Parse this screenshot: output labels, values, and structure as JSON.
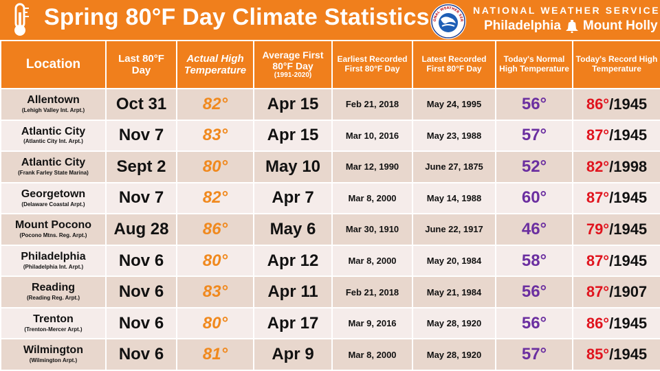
{
  "header": {
    "title": "Spring 80°F Day Climate Statistics",
    "agency": "NATIONAL WEATHER SERVICE",
    "office_left": "Philadelphia",
    "office_right": "Mount Holly",
    "logo_text": "NATIONAL WEATHER SERVICE",
    "colors": {
      "banner": "#f07f1c",
      "actual_temp": "#f0891e",
      "normal_temp": "#6b2fa0",
      "record_temp": "#e0141e"
    }
  },
  "columns": {
    "location": "Location",
    "last_80": "Last 80°F Day",
    "actual_high": "Actual High Temperature",
    "avg_first": "Average First 80°F Day",
    "avg_first_period": "(1991-2020)",
    "earliest": "Earliest Recorded First 80°F Day",
    "latest": "Latest Recorded First 80°F Day",
    "normal_high": "Today's Normal High Temperature",
    "record_high": "Today's Record High Temperature"
  },
  "rows": [
    {
      "name": "Allentown",
      "site": "(Lehigh Valley Int. Arpt.)",
      "last": "Oct 31",
      "actual": "82°",
      "avg": "Apr 15",
      "earliest": "Feb 21, 2018",
      "latest": "May 24, 1995",
      "normal": "56°",
      "record_temp": "86°",
      "record_year": "/1945"
    },
    {
      "name": "Atlantic City",
      "site": "(Atlantic City Int. Arpt.)",
      "last": "Nov 7",
      "actual": "83°",
      "avg": "Apr 15",
      "earliest": "Mar 10, 2016",
      "latest": "May 23, 1988",
      "normal": "57°",
      "record_temp": "87°",
      "record_year": "/1945"
    },
    {
      "name": "Atlantic City",
      "site": "(Frank Farley State Marina)",
      "last": "Sept 2",
      "actual": "80°",
      "avg": "May 10",
      "earliest": "Mar 12, 1990",
      "latest": "June 27, 1875",
      "normal": "52°",
      "record_temp": "82°",
      "record_year": "/1998"
    },
    {
      "name": "Georgetown",
      "site": "(Delaware Coastal Arpt.)",
      "last": "Nov 7",
      "actual": "82°",
      "avg": "Apr 7",
      "earliest": "Mar 8, 2000",
      "latest": "May 14, 1988",
      "normal": "60°",
      "record_temp": "87°",
      "record_year": "/1945"
    },
    {
      "name": "Mount Pocono",
      "site": "(Pocono Mtns. Reg. Arpt.)",
      "last": "Aug 28",
      "actual": "86°",
      "avg": "May 6",
      "earliest": "Mar 30, 1910",
      "latest": "June 22, 1917",
      "normal": "46°",
      "record_temp": "79°",
      "record_year": "/1945"
    },
    {
      "name": "Philadelphia",
      "site": "(Philadelphia Int. Arpt.)",
      "last": "Nov 6",
      "actual": "80°",
      "avg": "Apr 12",
      "earliest": "Mar 8, 2000",
      "latest": "May 20, 1984",
      "normal": "58°",
      "record_temp": "87°",
      "record_year": "/1945"
    },
    {
      "name": "Reading",
      "site": "(Reading Reg. Arpt.)",
      "last": "Nov 6",
      "actual": "83°",
      "avg": "Apr 11",
      "earliest": "Feb 21, 2018",
      "latest": "May 21, 1984",
      "normal": "56°",
      "record_temp": "87°",
      "record_year": "/1907"
    },
    {
      "name": "Trenton",
      "site": "(Trenton-Mercer Arpt.)",
      "last": "Nov 6",
      "actual": "80°",
      "avg": "Apr 17",
      "earliest": "Mar 9, 2016",
      "latest": "May 28, 1920",
      "normal": "56°",
      "record_temp": "86°",
      "record_year": "/1945"
    },
    {
      "name": "Wilmington",
      "site": "(Wilmington Arpt.)",
      "last": "Nov 6",
      "actual": "81°",
      "avg": "Apr 9",
      "earliest": "Mar 8, 2000",
      "latest": "May 28, 1920",
      "normal": "57°",
      "record_temp": "85°",
      "record_year": "/1945"
    }
  ]
}
